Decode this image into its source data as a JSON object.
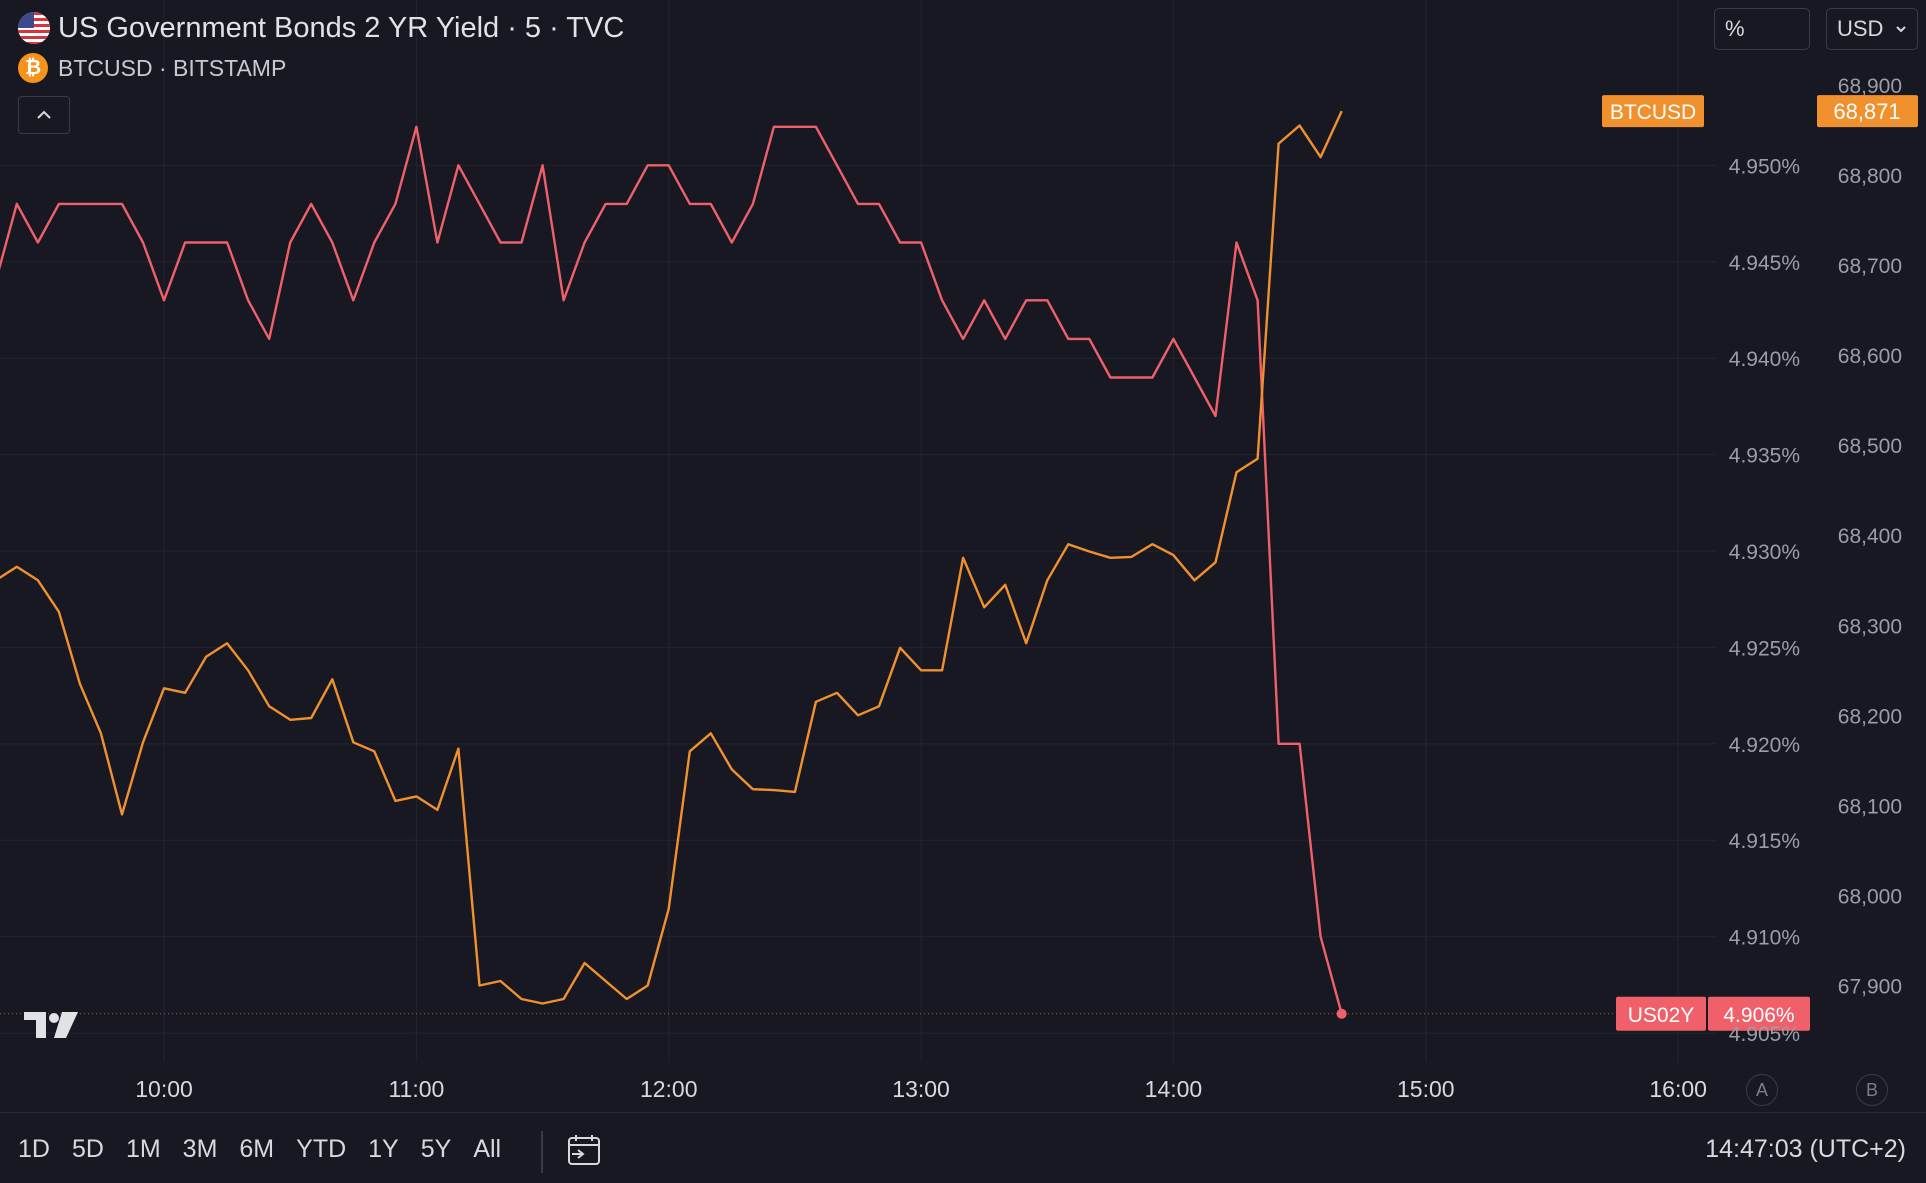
{
  "legend": {
    "main_title": "US Government Bonds 2 YR Yield · 5 · TVC",
    "compare_title": "BTCUSD · BITSTAMP"
  },
  "controls": {
    "percent_button": "%",
    "currency_select": "USD"
  },
  "time_ranges": [
    "1D",
    "5D",
    "1M",
    "3M",
    "6M",
    "YTD",
    "1Y",
    "5Y",
    "All"
  ],
  "clock": "14:47:03 (UTC+2)",
  "scale_buttons": [
    "A",
    "B"
  ],
  "chart_data": {
    "type": "line",
    "x_tick_labels": [
      "10:00",
      "11:00",
      "12:00",
      "13:00",
      "14:00",
      "15:00",
      "16:00"
    ],
    "xlim_hours": [
      9.35,
      16.15
    ],
    "interval_minutes": 5,
    "left_axis_ticks": [
      "4.950%",
      "4.945%",
      "4.940%",
      "4.935%",
      "4.930%",
      "4.925%",
      "4.920%",
      "4.915%",
      "4.910%",
      "4.905%"
    ],
    "right_axis_ticks": [
      "68,900",
      "68,800",
      "68,700",
      "68,600",
      "68,500",
      "68,400",
      "68,300",
      "68,200",
      "68,100",
      "68,000",
      "67,900"
    ],
    "y_left_lim": [
      4.9035,
      4.9565
    ],
    "y_right_lim": [
      67815,
      68950
    ],
    "grid": true,
    "series": [
      {
        "name": "US02Y",
        "axis": "left",
        "color": "#f0606a",
        "start_hour": 9.333333,
        "last_value_label": "4.906%",
        "values": [
          4.944,
          4.948,
          4.946,
          4.948,
          4.948,
          4.948,
          4.948,
          4.946,
          4.943,
          4.946,
          4.946,
          4.946,
          4.943,
          4.941,
          4.946,
          4.948,
          4.946,
          4.943,
          4.946,
          4.948,
          4.952,
          4.946,
          4.95,
          4.948,
          4.946,
          4.946,
          4.95,
          4.943,
          4.946,
          4.948,
          4.948,
          4.95,
          4.95,
          4.948,
          4.948,
          4.946,
          4.948,
          4.952,
          4.952,
          4.952,
          4.95,
          4.948,
          4.948,
          4.946,
          4.946,
          4.943,
          4.941,
          4.943,
          4.941,
          4.943,
          4.943,
          4.941,
          4.941,
          4.939,
          4.939,
          4.939,
          4.941,
          4.939,
          4.937,
          4.946,
          4.943,
          4.92,
          4.92,
          4.91,
          4.906
        ]
      },
      {
        "name": "BTCUSD",
        "axis": "right",
        "color": "#f0912e",
        "start_hour": 9.333333,
        "last_value_label": "68,871",
        "values": [
          68350,
          68365,
          68350,
          68315,
          68235,
          68180,
          68090,
          68170,
          68230,
          68225,
          68265,
          68280,
          68250,
          68210,
          68195,
          68197,
          68240,
          68170,
          68160,
          68105,
          68110,
          68095,
          68163,
          67900,
          67905,
          67885,
          67880,
          67885,
          67925,
          67905,
          67885,
          67900,
          67985,
          68160,
          68180,
          68140,
          68118,
          68117,
          68115,
          68215,
          68225,
          68200,
          68210,
          68275,
          68250,
          68250,
          68375,
          68320,
          68345,
          68280,
          68350,
          68390,
          68382,
          68375,
          68376,
          68390,
          68378,
          68350,
          68370,
          68470,
          68485,
          68835,
          68855,
          68820,
          68871
        ]
      }
    ]
  }
}
